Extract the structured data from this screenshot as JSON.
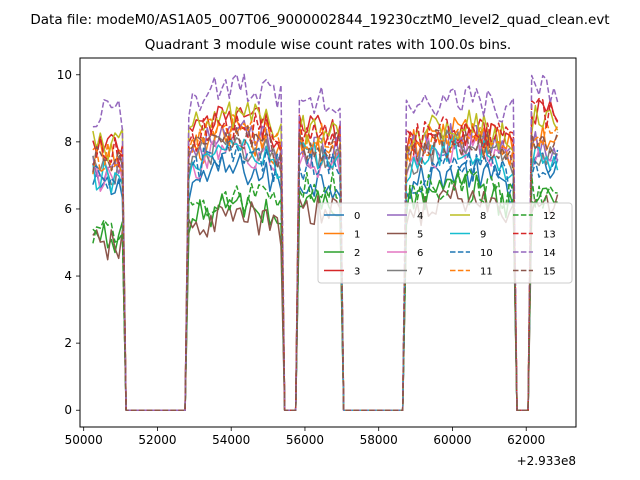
{
  "figure": {
    "suptitle": "Data file: modeM0/AS1A05_007T06_9000002844_19230cztM0_level2_quad_clean.evt",
    "title": "Quadrant 3 module wise count rates with 100.0s bins.",
    "x_offset_label": "+2.933e8"
  },
  "chart_data": {
    "type": "line",
    "title": "Quadrant 3 module wise count rates with 100.0s bins.",
    "xlabel": "",
    "ylabel": "",
    "x_offset": 293300000,
    "xlim": [
      49900,
      63350
    ],
    "ylim": [
      -0.5,
      10.5
    ],
    "xticks": [
      50000,
      52000,
      54000,
      56000,
      58000,
      60000,
      62000
    ],
    "yticks": [
      0,
      2,
      4,
      6,
      8,
      10
    ],
    "grid": false,
    "legend": {
      "placement": "center-right",
      "ncol": 4
    },
    "segments": [
      {
        "x_start": 50250,
        "x_end": 51050
      },
      {
        "x_start": 52850,
        "x_end": 55350
      },
      {
        "x_start": 55850,
        "x_end": 56950
      },
      {
        "x_start": 58750,
        "x_end": 61650
      },
      {
        "x_start": 62150,
        "x_end": 62850
      }
    ],
    "gaps": [
      {
        "x_start": 51150,
        "x_end": 52750
      },
      {
        "x_start": 55450,
        "x_end": 55750
      },
      {
        "x_start": 57050,
        "x_end": 58650
      },
      {
        "x_start": 61750,
        "x_end": 62050
      }
    ],
    "series": [
      {
        "name": "0",
        "color": "#1f77b4",
        "dash": "solid",
        "level": [
          6.6,
          6.7,
          6.8,
          6.6,
          7.2
        ]
      },
      {
        "name": "1",
        "color": "#ff7f0e",
        "dash": "solid",
        "level": [
          7.6,
          7.6,
          7.8,
          7.8,
          8.1
        ]
      },
      {
        "name": "2",
        "color": "#2ca02c",
        "dash": "solid",
        "level": [
          5.2,
          5.6,
          6.2,
          6.1,
          6.3
        ]
      },
      {
        "name": "3",
        "color": "#d62728",
        "dash": "solid",
        "level": [
          7.8,
          8.2,
          8.4,
          7.9,
          8.9
        ]
      },
      {
        "name": "4",
        "color": "#9467bd",
        "dash": "solid",
        "level": [
          7.3,
          7.7,
          7.7,
          7.6,
          7.9
        ]
      },
      {
        "name": "5",
        "color": "#8c564b",
        "dash": "solid",
        "level": [
          4.9,
          5.3,
          5.9,
          5.8,
          6.1
        ]
      },
      {
        "name": "6",
        "color": "#e377c2",
        "dash": "solid",
        "level": [
          7.0,
          7.2,
          7.4,
          7.3,
          7.5
        ]
      },
      {
        "name": "7",
        "color": "#7f7f7f",
        "dash": "solid",
        "level": [
          7.2,
          7.4,
          7.6,
          7.4,
          7.7
        ]
      },
      {
        "name": "8",
        "color": "#bcbd22",
        "dash": "solid",
        "level": [
          7.9,
          8.3,
          8.4,
          8.0,
          8.6
        ]
      },
      {
        "name": "9",
        "color": "#17becf",
        "dash": "solid",
        "level": [
          6.9,
          7.2,
          7.5,
          7.2,
          7.6
        ]
      },
      {
        "name": "10",
        "color": "#1f77b4",
        "dash": "dashed",
        "level": [
          6.8,
          7.1,
          7.3,
          6.8,
          7.4
        ]
      },
      {
        "name": "11",
        "color": "#ff7f0e",
        "dash": "dashed",
        "level": [
          7.5,
          7.9,
          8.1,
          7.7,
          8.3
        ]
      },
      {
        "name": "12",
        "color": "#2ca02c",
        "dash": "dashed",
        "level": [
          5.4,
          5.9,
          6.6,
          6.3,
          6.5
        ]
      },
      {
        "name": "13",
        "color": "#d62728",
        "dash": "dashed",
        "level": [
          7.7,
          8.0,
          8.2,
          7.9,
          8.8
        ]
      },
      {
        "name": "14",
        "color": "#9467bd",
        "dash": "dashed",
        "level": [
          8.8,
          9.2,
          9.3,
          8.8,
          9.6
        ]
      },
      {
        "name": "15",
        "color": "#8c564b",
        "dash": "dashed",
        "level": [
          7.4,
          7.6,
          7.8,
          7.5,
          7.9
        ]
      }
    ]
  }
}
